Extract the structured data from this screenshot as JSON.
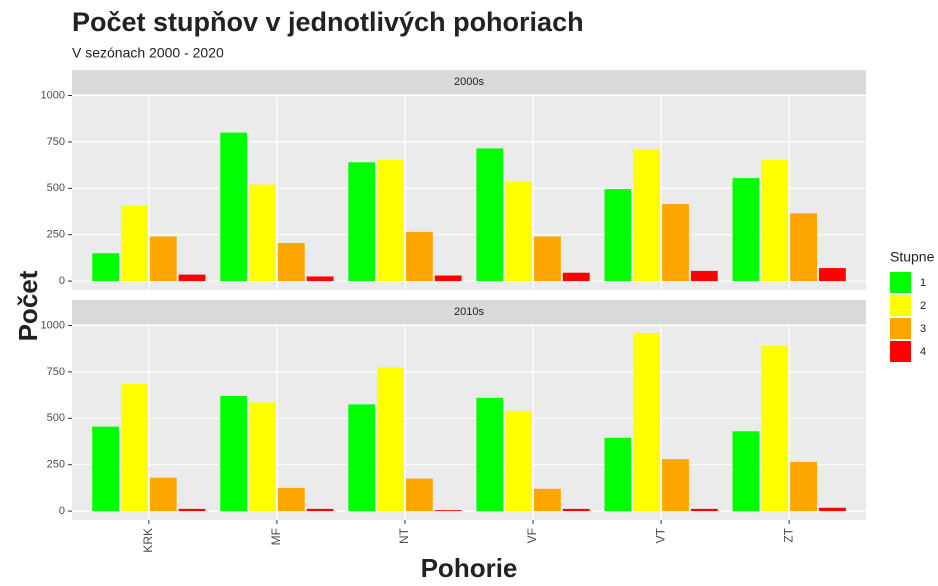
{
  "chart_data": {
    "type": "bar",
    "title": "Počet stupňov v jednotlivých pohoriach",
    "subtitle": "V sezónach 2000 - 2020",
    "x_label": "Pohorie",
    "y_label": "Počet",
    "legend_title": "Stupne",
    "categories": [
      "KRK",
      "MF",
      "NT",
      "VF",
      "VT",
      "ZT"
    ],
    "series": [
      {
        "name": "1",
        "color": "#00ff00"
      },
      {
        "name": "2",
        "color": "#ffff00"
      },
      {
        "name": "3",
        "color": "#ffa500"
      },
      {
        "name": "4",
        "color": "#ff0000"
      }
    ],
    "facets": [
      {
        "label": "2000s",
        "values": [
          [
            150,
            800,
            640,
            715,
            495,
            555
          ],
          [
            405,
            520,
            655,
            535,
            710,
            655
          ],
          [
            240,
            205,
            265,
            240,
            415,
            365
          ],
          [
            35,
            25,
            30,
            45,
            55,
            70
          ]
        ]
      },
      {
        "label": "2010s",
        "values": [
          [
            455,
            620,
            575,
            610,
            395,
            430
          ],
          [
            685,
            585,
            775,
            540,
            960,
            890
          ],
          [
            180,
            125,
            175,
            120,
            280,
            265
          ],
          [
            12,
            12,
            5,
            12,
            12,
            18
          ]
        ]
      }
    ],
    "ylim": [
      -48,
      1008
    ],
    "yticks": [
      0,
      250,
      500,
      750,
      1000
    ],
    "grid": true,
    "legend": "right"
  }
}
